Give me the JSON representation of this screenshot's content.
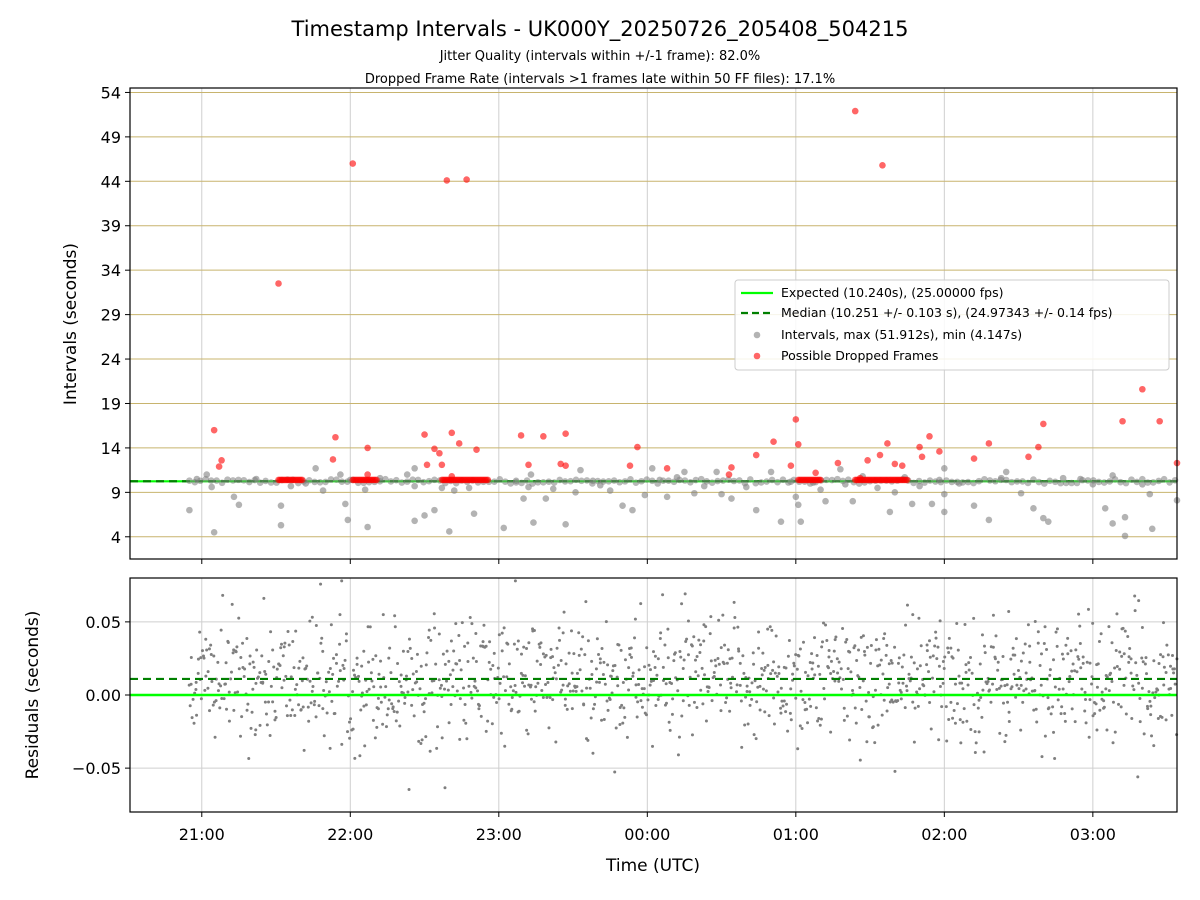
{
  "chart_data": [
    {
      "type": "scatter",
      "title": "Timestamp Intervals - UK000Y_20250726_205408_504215",
      "subtitle_lines": [
        "Jitter Quality (intervals within +/-1 frame): 82.0%",
        "Dropped Frame Rate (intervals >1 frames late within 50 FF files): 17.1%"
      ],
      "ylabel": "Intervals (seconds)",
      "xlim": [
        "20:31",
        "03:34"
      ],
      "ylim": [
        1.5,
        54.5
      ],
      "y_ticks": [
        4,
        9,
        14,
        19,
        24,
        29,
        34,
        39,
        44,
        49,
        54
      ],
      "y_grid_color": "#c8b46e",
      "x_ticks": [
        "21:00",
        "22:00",
        "23:00",
        "00:00",
        "01:00",
        "02:00",
        "03:00"
      ],
      "legend_position": "center-right",
      "expected_line": {
        "name": "Expected (10.240s), (25.00000 fps)",
        "y": 10.24,
        "color": "#00ff00"
      },
      "median_line": {
        "name": "Median (10.251 +/- 0.103 s), (24.97343 +/- 0.14 fps)",
        "y": 10.251,
        "color": "#008000"
      },
      "series": [
        {
          "name": "Intervals, max (51.912s), min (4.147s)",
          "color": "#808080",
          "points": [
            [
              "20:55",
              7.0
            ],
            [
              "20:58",
              10.5
            ],
            [
              "21:02",
              11.0
            ],
            [
              "21:04",
              9.6
            ],
            [
              "21:05",
              4.5
            ],
            [
              "21:13",
              8.5
            ],
            [
              "21:15",
              7.6
            ],
            [
              "21:22",
              10.5
            ],
            [
              "21:32",
              7.5
            ],
            [
              "21:32",
              5.3
            ],
            [
              "21:36",
              9.7
            ],
            [
              "21:42",
              10.0
            ],
            [
              "21:46",
              11.7
            ],
            [
              "21:49",
              9.2
            ],
            [
              "21:56",
              11.0
            ],
            [
              "22:00",
              10.4
            ],
            [
              "21:58",
              7.7
            ],
            [
              "21:59",
              5.9
            ],
            [
              "22:06",
              9.3
            ],
            [
              "22:07",
              5.1
            ],
            [
              "22:12",
              10.6
            ],
            [
              "22:23",
              11.0
            ],
            [
              "22:26",
              9.7
            ],
            [
              "22:26",
              11.7
            ],
            [
              "22:26",
              5.8
            ],
            [
              "22:30",
              6.4
            ],
            [
              "22:34",
              7.0
            ],
            [
              "22:37",
              9.5
            ],
            [
              "22:40",
              4.6
            ],
            [
              "22:42",
              9.2
            ],
            [
              "22:48",
              9.5
            ],
            [
              "22:50",
              6.6
            ],
            [
              "23:02",
              5.0
            ],
            [
              "23:07",
              10.3
            ],
            [
              "23:10",
              8.3
            ],
            [
              "23:12",
              9.6
            ],
            [
              "23:13",
              11.0
            ],
            [
              "23:14",
              5.6
            ],
            [
              "23:19",
              8.3
            ],
            [
              "23:22",
              9.4
            ],
            [
              "23:27",
              5.4
            ],
            [
              "23:31",
              9.0
            ],
            [
              "23:33",
              11.5
            ],
            [
              "23:38",
              10.3
            ],
            [
              "23:41",
              9.8
            ],
            [
              "23:45",
              9.2
            ],
            [
              "23:50",
              7.5
            ],
            [
              "23:54",
              7.0
            ],
            [
              "23:59",
              8.7
            ],
            [
              "00:02",
              11.7
            ],
            [
              "00:05",
              10.4
            ],
            [
              "00:08",
              8.5
            ],
            [
              "00:12",
              10.7
            ],
            [
              "00:15",
              11.3
            ],
            [
              "00:19",
              8.9
            ],
            [
              "00:23",
              9.7
            ],
            [
              "00:28",
              11.3
            ],
            [
              "00:30",
              8.8
            ],
            [
              "00:34",
              8.3
            ],
            [
              "00:40",
              9.6
            ],
            [
              "00:44",
              7.0
            ],
            [
              "00:50",
              11.3
            ],
            [
              "00:54",
              5.7
            ],
            [
              "00:58",
              10.2
            ],
            [
              "01:00",
              8.5
            ],
            [
              "01:01",
              7.6
            ],
            [
              "01:02",
              5.7
            ],
            [
              "01:07",
              10.1
            ],
            [
              "01:10",
              9.3
            ],
            [
              "01:12",
              8.0
            ],
            [
              "01:18",
              11.6
            ],
            [
              "01:20",
              9.9
            ],
            [
              "01:23",
              8.0
            ],
            [
              "01:27",
              10.8
            ],
            [
              "01:33",
              9.5
            ],
            [
              "01:38",
              6.8
            ],
            [
              "01:40",
              9.0
            ],
            [
              "01:44",
              10.7
            ],
            [
              "01:47",
              7.7
            ],
            [
              "01:50",
              9.7
            ],
            [
              "01:55",
              7.7
            ],
            [
              "01:58",
              10.4
            ],
            [
              "02:00",
              11.7
            ],
            [
              "02:00",
              8.8
            ],
            [
              "02:00",
              6.8
            ],
            [
              "02:06",
              10.0
            ],
            [
              "02:12",
              7.5
            ],
            [
              "02:18",
              5.9
            ],
            [
              "02:23",
              10.6
            ],
            [
              "02:25",
              11.3
            ],
            [
              "02:31",
              8.9
            ],
            [
              "02:36",
              7.2
            ],
            [
              "02:40",
              6.1
            ],
            [
              "02:42",
              5.7
            ],
            [
              "02:48",
              10.6
            ],
            [
              "02:55",
              10.5
            ],
            [
              "03:00",
              9.9
            ],
            [
              "03:05",
              7.2
            ],
            [
              "03:08",
              10.9
            ],
            [
              "03:08",
              5.5
            ],
            [
              "03:13",
              6.2
            ],
            [
              "03:13",
              4.1
            ],
            [
              "03:20",
              9.9
            ],
            [
              "03:23",
              8.8
            ],
            [
              "03:24",
              4.9
            ],
            [
              "03:34",
              8.1
            ]
          ]
        },
        {
          "name": "Possible Dropped Frames",
          "color": "#ff0000",
          "points": [
            [
              "21:05",
              16.0
            ],
            [
              "21:07",
              11.9
            ],
            [
              "21:08",
              12.6
            ],
            [
              "21:31",
              32.5
            ],
            [
              "21:53",
              12.7
            ],
            [
              "21:54",
              15.2
            ],
            [
              "22:01",
              46.0
            ],
            [
              "22:07",
              14.0
            ],
            [
              "22:07",
              11.0
            ],
            [
              "22:30",
              15.5
            ],
            [
              "22:31",
              12.1
            ],
            [
              "22:34",
              13.9
            ],
            [
              "22:36",
              13.4
            ],
            [
              "22:37",
              12.1
            ],
            [
              "22:39",
              44.1
            ],
            [
              "22:41",
              15.7
            ],
            [
              "22:41",
              10.8
            ],
            [
              "22:44",
              14.5
            ],
            [
              "22:47",
              44.2
            ],
            [
              "22:51",
              13.8
            ],
            [
              "23:09",
              15.4
            ],
            [
              "23:12",
              12.1
            ],
            [
              "23:18",
              15.3
            ],
            [
              "23:27",
              15.6
            ],
            [
              "23:25",
              12.2
            ],
            [
              "23:27",
              12.0
            ],
            [
              "23:53",
              12.0
            ],
            [
              "23:56",
              14.1
            ],
            [
              "00:08",
              11.7
            ],
            [
              "00:33",
              11.0
            ],
            [
              "00:34",
              11.8
            ],
            [
              "00:44",
              13.2
            ],
            [
              "00:51",
              14.7
            ],
            [
              "00:58",
              12.0
            ],
            [
              "01:00",
              17.2
            ],
            [
              "01:01",
              14.4
            ],
            [
              "01:08",
              11.2
            ],
            [
              "01:17",
              12.3
            ],
            [
              "01:24",
              51.9
            ],
            [
              "01:26",
              10.6
            ],
            [
              "01:29",
              12.6
            ],
            [
              "01:34",
              13.2
            ],
            [
              "01:35",
              45.8
            ],
            [
              "01:37",
              14.5
            ],
            [
              "01:40",
              12.2
            ],
            [
              "01:43",
              12.0
            ],
            [
              "01:50",
              14.1
            ],
            [
              "01:51",
              13.0
            ],
            [
              "01:54",
              15.3
            ],
            [
              "01:58",
              13.6
            ],
            [
              "02:12",
              12.8
            ],
            [
              "02:18",
              14.5
            ],
            [
              "02:34",
              13.0
            ],
            [
              "02:38",
              14.1
            ],
            [
              "02:40",
              16.7
            ],
            [
              "03:12",
              17.0
            ],
            [
              "03:20",
              20.6
            ],
            [
              "03:27",
              17.0
            ],
            [
              "03:34",
              12.3
            ]
          ]
        }
      ]
    },
    {
      "type": "scatter",
      "ylabel": "Residuals (seconds)",
      "xlabel": "Time (UTC)",
      "xlim": [
        "20:31",
        "03:34"
      ],
      "ylim": [
        -0.08,
        0.08
      ],
      "y_ticks": [
        0.05,
        0.0,
        -0.05
      ],
      "y_tick_labels": [
        "0.05",
        "0.00",
        "−0.05"
      ],
      "x_ticks": [
        "21:00",
        "22:00",
        "23:00",
        "00:00",
        "01:00",
        "02:00",
        "03:00"
      ],
      "grid": true,
      "zero_line": {
        "y": 0.0,
        "color": "#00ff00"
      },
      "median_line": {
        "y": 0.011,
        "color": "#008000"
      },
      "series": [
        {
          "name": "Residuals",
          "color": "#7f7f7f",
          "x_start": "20:55",
          "x_end": "03:34",
          "count": 1300,
          "mean": 0.01,
          "std": 0.022
        }
      ]
    }
  ]
}
